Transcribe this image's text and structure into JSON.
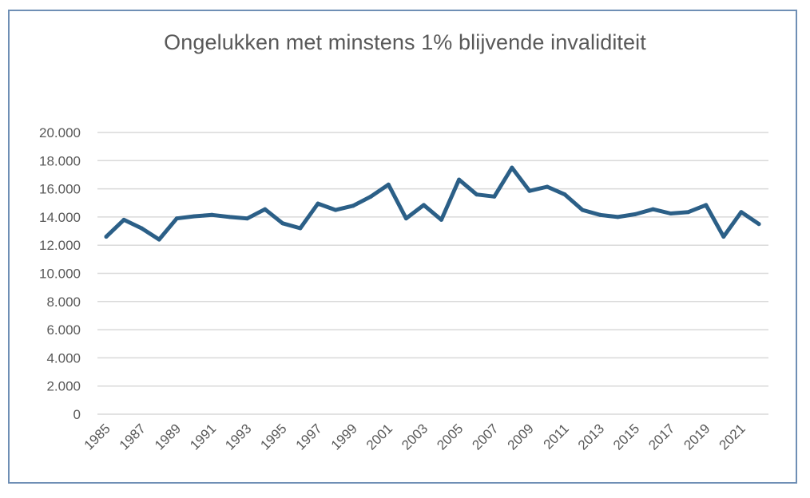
{
  "chart_data": {
    "type": "line",
    "title": "Ongelukken met minstens 1% blijvende invaliditeit",
    "xlabel": "",
    "ylabel": "",
    "ylim": [
      0,
      20000
    ],
    "y_ticks": [
      "0",
      "2.000",
      "4.000",
      "6.000",
      "8.000",
      "10.000",
      "12.000",
      "14.000",
      "16.000",
      "18.000",
      "20.000"
    ],
    "x": [
      1985,
      1986,
      1987,
      1988,
      1989,
      1990,
      1991,
      1992,
      1993,
      1994,
      1995,
      1996,
      1997,
      1998,
      1999,
      2000,
      2001,
      2002,
      2003,
      2004,
      2005,
      2006,
      2007,
      2008,
      2009,
      2010,
      2011,
      2012,
      2013,
      2014,
      2015,
      2016,
      2017,
      2018,
      2019,
      2020,
      2021,
      2022
    ],
    "x_tick_labels": [
      "1985",
      "1987",
      "1989",
      "1991",
      "1993",
      "1995",
      "1997",
      "1999",
      "2001",
      "2003",
      "2005",
      "2007",
      "2009",
      "2011",
      "2013",
      "2015",
      "2017",
      "2019",
      "2021"
    ],
    "series": [
      {
        "values": [
          12600,
          13800,
          13200,
          12400,
          13900,
          14050,
          14150,
          14000,
          13900,
          14550,
          13550,
          13200,
          14950,
          14500,
          14800,
          15450,
          16300,
          13900,
          14850,
          13800,
          16650,
          15600,
          15450,
          17500,
          15850,
          16150,
          15600,
          14500,
          14150,
          14000,
          14200,
          14550,
          14250,
          14350,
          14850,
          12600,
          14350,
          13500
        ],
        "color": "#2b5f87"
      }
    ],
    "grid": true,
    "legend": "none"
  }
}
